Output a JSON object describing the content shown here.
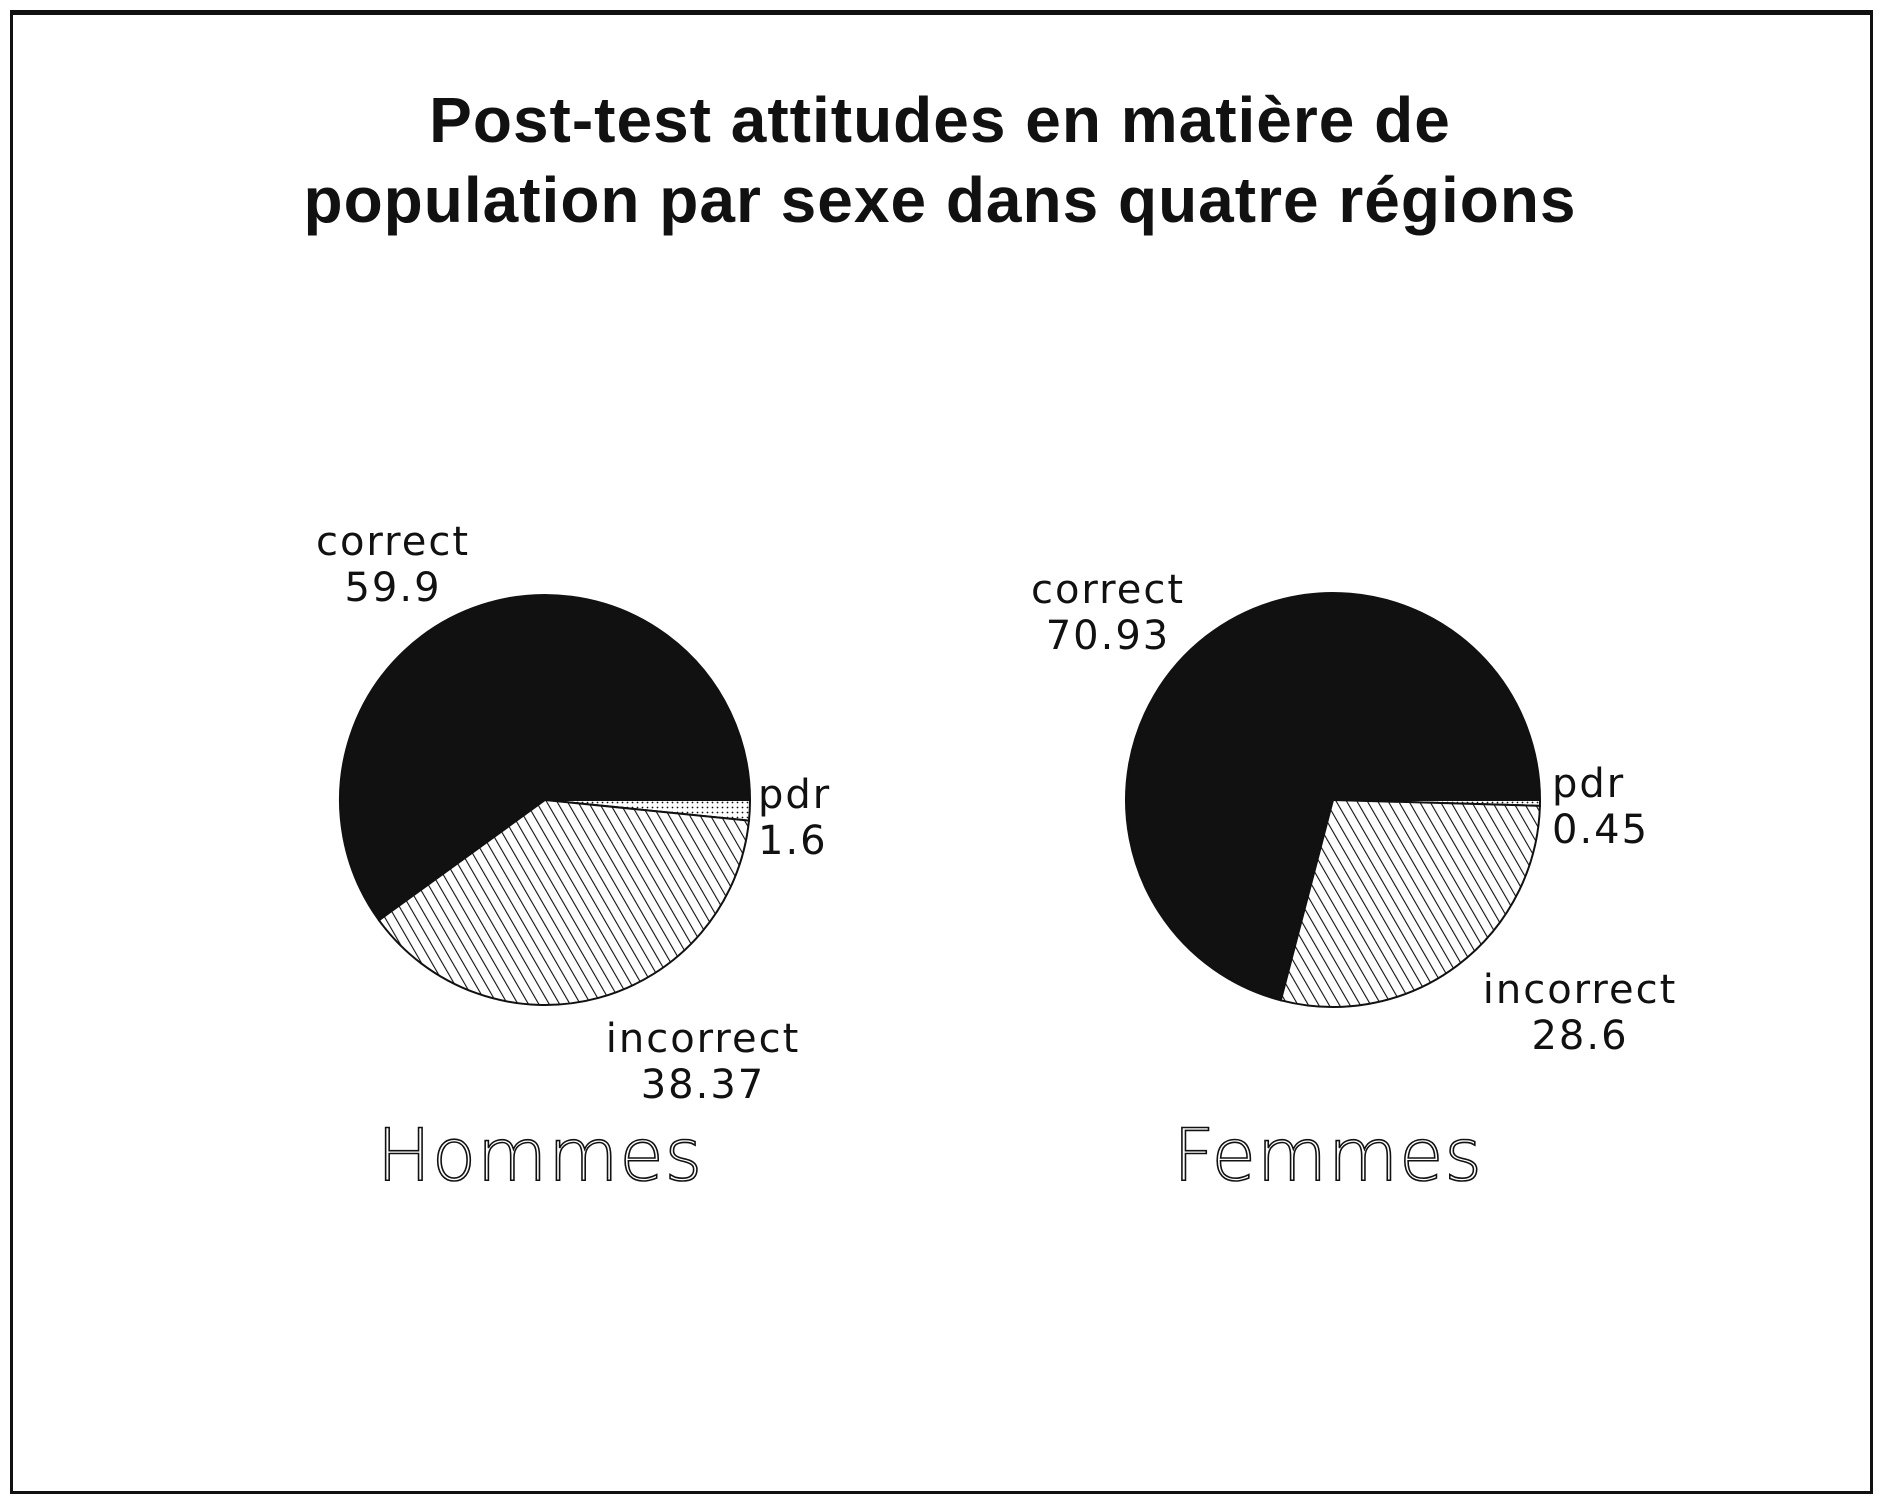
{
  "chart_data": {
    "type": "pie",
    "title": "Post-test attitudes en matière de population par sexe dans quatre régions",
    "title_lines": [
      "Post-test attitudes en matière de",
      "population par sexe dans quatre régions"
    ],
    "pies": [
      {
        "name": "Hommes",
        "slices": [
          {
            "label": "correct",
            "value_label": "59.9",
            "value": 59.9,
            "fill": "solid-black"
          },
          {
            "label": "pdr",
            "value_label": "1.6",
            "value": 1.6,
            "fill": "dotted"
          },
          {
            "label": "incorrect",
            "value_label": "38.37",
            "value": 38.37,
            "fill": "diagonal-hatch"
          }
        ]
      },
      {
        "name": "Femmes",
        "slices": [
          {
            "label": "correct",
            "value_label": "70.93",
            "value": 70.93,
            "fill": "solid-black"
          },
          {
            "label": "pdr",
            "value_label": "0.45",
            "value": 0.45,
            "fill": "dotted"
          },
          {
            "label": "incorrect",
            "value_label": "28.6",
            "value": 28.6,
            "fill": "diagonal-hatch"
          }
        ]
      }
    ]
  },
  "colors": {
    "ink": "#111111",
    "background": "#ffffff"
  }
}
